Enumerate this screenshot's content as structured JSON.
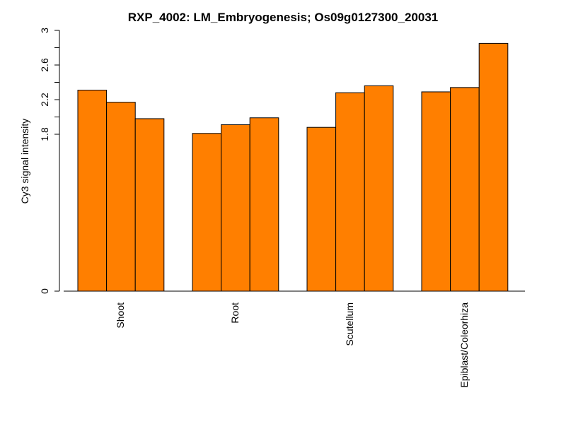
{
  "chart_data": {
    "type": "bar",
    "title": "RXP_4002: LM_Embryogenesis; Os09g0127300_20031",
    "xlabel": "",
    "ylabel": "Cy3 signal intensity",
    "categories": [
      "Shoot",
      "Root",
      "Scutellum",
      "Epiblast/Coleorhiza"
    ],
    "groups": [
      {
        "category": "Shoot",
        "values": [
          2.31,
          2.17,
          1.98
        ]
      },
      {
        "category": "Root",
        "values": [
          1.81,
          1.91,
          1.99
        ]
      },
      {
        "category": "Scutellum",
        "values": [
          1.88,
          2.28,
          2.36
        ]
      },
      {
        "category": "Epiblast/Coleorhiza",
        "values": [
          2.29,
          2.34,
          2.85
        ]
      }
    ],
    "y_ticks": [
      {
        "value": 0,
        "label": "0"
      },
      {
        "value": 1.8,
        "label": "1.8"
      },
      {
        "value": 2.2,
        "label": "2.2"
      },
      {
        "value": 2.6,
        "label": "2.6"
      },
      {
        "value": 3.0,
        "label": "3"
      }
    ],
    "ylim": [
      0,
      3.0
    ],
    "bar_color": "#FF7F00",
    "grid": false,
    "legend": "none"
  }
}
